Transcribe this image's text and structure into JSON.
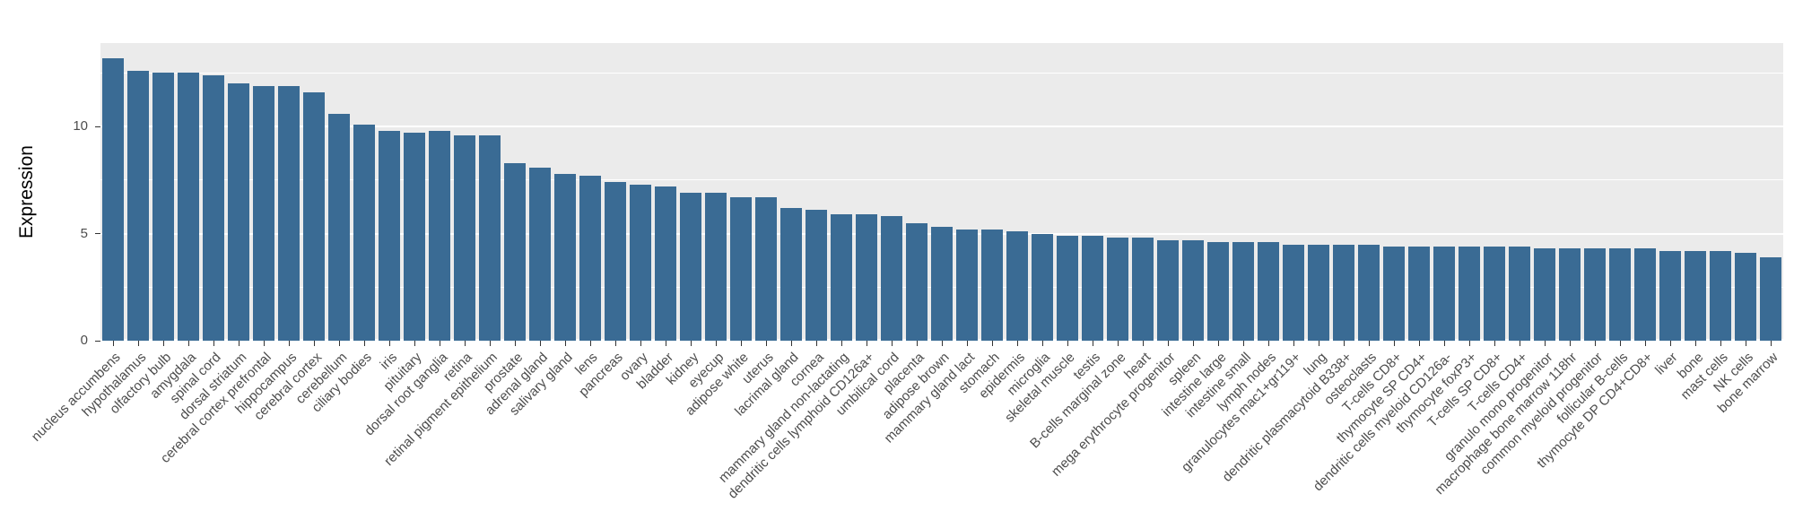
{
  "chart_data": {
    "type": "bar",
    "title": "",
    "xlabel": "",
    "ylabel": "Expression",
    "ylim": [
      0,
      13.9
    ],
    "yticks": [
      0,
      5,
      10
    ],
    "yticks_minor": [
      2.5,
      7.5,
      12.5
    ],
    "grid": true,
    "legend": false,
    "bar_color": "#3A6B94",
    "panel_background": "#EBEBEB",
    "gridline_color": "#FFFFFF",
    "axis_text_color": "#4D4D4D",
    "categories": [
      "nucleus accumbens",
      "hypothalamus",
      "olfactory bulb",
      "amygdala",
      "spinal cord",
      "dorsal striatum",
      "cerebral cortex prefrontal",
      "hippocampus",
      "cerebral cortex",
      "cerebellum",
      "ciliary bodies",
      "iris",
      "pituitary",
      "dorsal root ganglia",
      "retina",
      "retinal pigment epithelium",
      "prostate",
      "adrenal gland",
      "salivary gland",
      "lens",
      "pancreas",
      "ovary",
      "bladder",
      "kidney",
      "eyecup",
      "adipose white",
      "uterus",
      "lacrimal gland",
      "cornea",
      "mammary gland non-lactating",
      "dendritic cells lymphoid CD126a+",
      "umbilical cord",
      "placenta",
      "adipose brown",
      "mammary gland lact",
      "stomach",
      "epidermis",
      "microglia",
      "skeletal muscle",
      "testis",
      "B-cells marginal zone",
      "heart",
      "mega erythrocyte progenitor",
      "spleen",
      "intestine large",
      "intestine small",
      "lymph nodes",
      "granulocytes mac1+gr119+",
      "lung",
      "dendritic plasmacytoid B338+",
      "osteoclasts",
      "T-cells CD8+",
      "thymocyte SP CD4+",
      "dendritic cells myeloid CD126a-",
      "thymocyte foxP3+",
      "T-cells SP CD8+",
      "T-cells CD4+",
      "granulo mono progenitor",
      "macrophage bone marrow 118hr",
      "common myeloid progenitor",
      "follicular B-cells",
      "thymocyte DP CD4+CD8+",
      "liver",
      "bone",
      "mast cells",
      "NK cells",
      "bone marrow"
    ],
    "values": [
      13.2,
      12.6,
      12.5,
      12.5,
      12.4,
      12.0,
      11.9,
      11.9,
      11.6,
      10.6,
      10.1,
      9.8,
      9.7,
      9.8,
      9.6,
      9.6,
      8.3,
      8.1,
      7.8,
      7.7,
      7.4,
      7.3,
      7.2,
      6.9,
      6.9,
      6.7,
      6.7,
      6.2,
      6.1,
      5.9,
      5.9,
      5.8,
      5.5,
      5.3,
      5.2,
      5.2,
      5.1,
      5.0,
      4.9,
      4.9,
      4.8,
      4.8,
      4.7,
      4.7,
      4.6,
      4.6,
      4.6,
      4.5,
      4.5,
      4.5,
      4.5,
      4.4,
      4.4,
      4.4,
      4.4,
      4.4,
      4.4,
      4.3,
      4.3,
      4.3,
      4.3,
      4.3,
      4.2,
      4.2,
      4.2,
      4.1,
      3.9
    ]
  }
}
